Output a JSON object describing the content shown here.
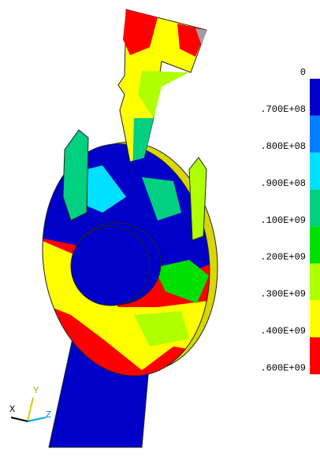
{
  "legend": {
    "labels": [
      "0",
      ".700E+08",
      ".800E+08",
      ".900E+08",
      ".100E+09",
      ".200E+09",
      ".300E+09",
      ".400E+09",
      ".600E+09"
    ],
    "colors": [
      "#0000c8",
      "#0080ff",
      "#00e0ff",
      "#00d080",
      "#00e000",
      "#b0ff00",
      "#ffff00",
      "#ff0000"
    ]
  },
  "triad": {
    "x": "X",
    "y": "Y",
    "z": "Z"
  }
}
